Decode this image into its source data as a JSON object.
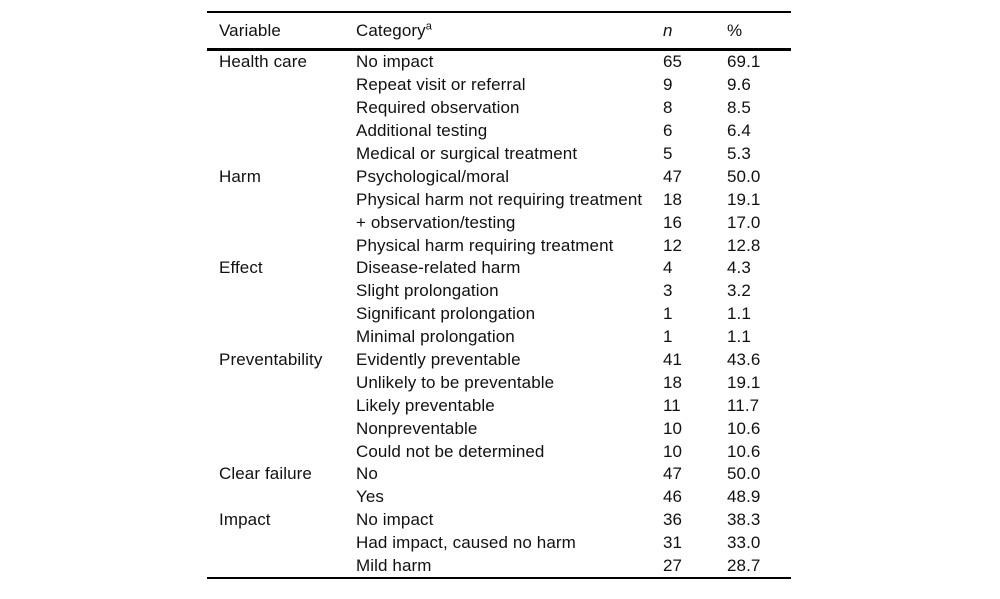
{
  "header": {
    "variable": "Variable",
    "category": "Category",
    "category_sup": "a",
    "n": "n",
    "pct": "%"
  },
  "table": {
    "groups": [
      {
        "variable": "Health care",
        "rows": [
          {
            "category": "No impact",
            "n": "65",
            "pct": "69.1"
          },
          {
            "category": "Repeat visit or referral",
            "n": "9",
            "pct": "9.6"
          },
          {
            "category": "Required observation",
            "n": "8",
            "pct": "8.5"
          },
          {
            "category": "Additional testing",
            "n": "6",
            "pct": "6.4"
          },
          {
            "category": "Medical or surgical treatment",
            "n": "5",
            "pct": "5.3"
          }
        ]
      },
      {
        "variable": "Harm",
        "rows": [
          {
            "category": "Psychological/moral",
            "n": "47",
            "pct": "50.0"
          },
          {
            "category": "Physical harm not requiring treatment",
            "n": "18",
            "pct": "19.1"
          },
          {
            "category": "+ observation/testing",
            "n": "16",
            "pct": "17.0"
          },
          {
            "category": "Physical harm requiring treatment",
            "n": "12",
            "pct": "12.8"
          }
        ]
      },
      {
        "variable": "Effect",
        "rows": [
          {
            "category": "Disease-related harm",
            "n": "4",
            "pct": "4.3"
          },
          {
            "category": "Slight prolongation",
            "n": "3",
            "pct": "3.2"
          },
          {
            "category": "Significant prolongation",
            "n": "1",
            "pct": "1.1"
          },
          {
            "category": "Minimal prolongation",
            "n": "1",
            "pct": "1.1"
          }
        ]
      },
      {
        "variable": "Preventability",
        "rows": [
          {
            "category": "Evidently preventable",
            "n": "41",
            "pct": "43.6"
          },
          {
            "category": "Unlikely to be preventable",
            "n": "18",
            "pct": "19.1"
          },
          {
            "category": "Likely preventable",
            "n": "11",
            "pct": "11.7"
          },
          {
            "category": "Nonpreventable",
            "n": "10",
            "pct": "10.6"
          },
          {
            "category": "Could not be determined",
            "n": "10",
            "pct": "10.6"
          }
        ]
      },
      {
        "variable": "Clear failure",
        "rows": [
          {
            "category": "No",
            "n": "47",
            "pct": "50.0"
          },
          {
            "category": "Yes",
            "n": "46",
            "pct": "48.9"
          }
        ]
      },
      {
        "variable": "Impact",
        "rows": [
          {
            "category": "No impact",
            "n": "36",
            "pct": "38.3"
          },
          {
            "category": "Had impact, caused no harm",
            "n": "31",
            "pct": "33.0"
          },
          {
            "category": "Mild harm",
            "n": "27",
            "pct": "28.7"
          }
        ]
      }
    ]
  },
  "colors": {
    "text": "#111111",
    "rule": "#000000",
    "background": "#ffffff"
  }
}
